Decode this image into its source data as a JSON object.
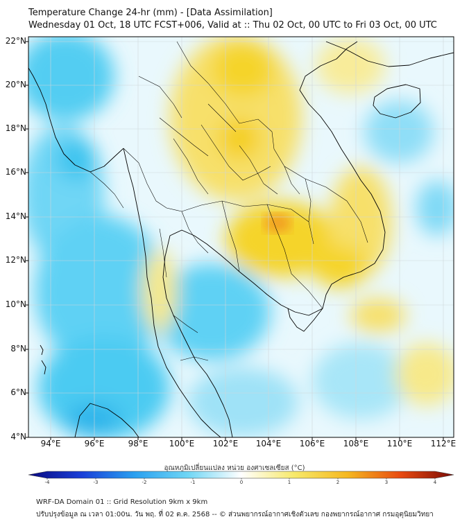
{
  "title": {
    "line1": "Temperature Change 24-hr (mm) - [Data Assimilation]",
    "line2": "Wednesday 01 Oct, 18 UTC FCST+006, Valid at :: Thu 02 Oct, 00 UTC to Fri 03 Oct, 00 UTC"
  },
  "map": {
    "lat_labels": [
      "22°N",
      "20°N",
      "18°N",
      "16°N",
      "14°N",
      "12°N",
      "10°N",
      "8°N",
      "6°N",
      "4°N"
    ],
    "lon_labels": [
      "94°E",
      "96°E",
      "98°E",
      "100°E",
      "102°E",
      "104°E",
      "106°E",
      "108°E",
      "110°E",
      "112°E"
    ],
    "lat_range": [
      4,
      22
    ],
    "lon_range": [
      93,
      113
    ],
    "warm_color": "#f5d42a",
    "cool_color": "#35c3ee",
    "hot_color": "#f08a20",
    "land_line_color": "#000000"
  },
  "colorbar": {
    "title": "อุณหภูมิเปลี่ยนแปลง หน่วย องศาเซลเซียส (°C)",
    "ticks": [
      "-4",
      "-3",
      "-2",
      "-1",
      "0",
      "1",
      "2",
      "3",
      "4"
    ],
    "range": [
      -4,
      4
    ],
    "stops": [
      "#0a0a80",
      "#1a3fd8",
      "#2aa0f0",
      "#6fd6f5",
      "#ffffff",
      "#f7e96a",
      "#f5b820",
      "#e84a10",
      "#7a0a05"
    ]
  },
  "footer": {
    "line1": "WRF-DA Domain 01 :: Grid Resolution 9km x 9km",
    "line2": "ปรับปรุงข้อมูล ณ เวลา 01:00น. วัน พฤ. ที่ 02 ต.ค. 2568 -- © ส่วนพยากรณ์อากาศเชิงตัวเลข กองพยากรณ์อากาศ กรมอุตุนิยมวิทยา"
  }
}
